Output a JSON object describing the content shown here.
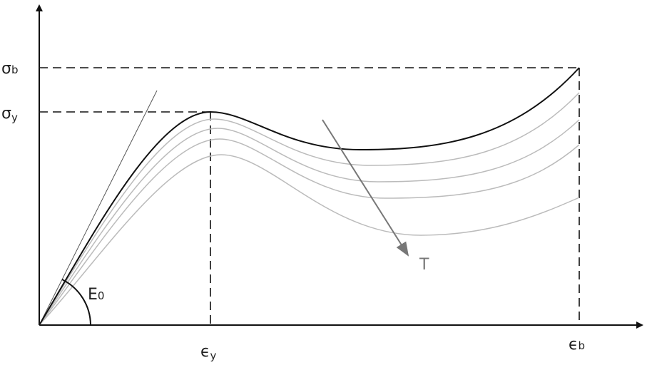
{
  "labels": {
    "sigma_b": {
      "symbol": "σ",
      "sub": "b"
    },
    "sigma_y": {
      "symbol": "σ",
      "sub": "y"
    },
    "epsilon_y": {
      "symbol": "ϵ",
      "sub": "y"
    },
    "epsilon_b": {
      "symbol": "ϵ",
      "sub": "b"
    },
    "modulus": {
      "symbol": "E",
      "sub": "0"
    },
    "temperature": {
      "symbol": "T"
    }
  }
}
